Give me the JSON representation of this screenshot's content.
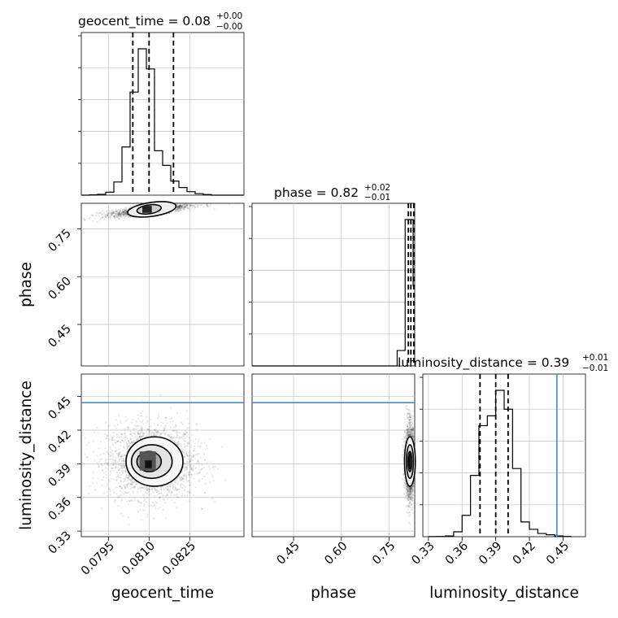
{
  "chart_data": {
    "type": "corner",
    "parameters": [
      "geocent_time",
      "phase",
      "luminosity_distance"
    ],
    "titles": [
      {
        "text": "geocent_time = 0.08",
        "sup": "+0.00",
        "sub": "−0.00"
      },
      {
        "text": "phase = 0.82",
        "sup": "+0.02",
        "sub": "−0.01"
      },
      {
        "text": "luminosity_distance = 0.39",
        "sup": "+0.01",
        "sub": "−0.01"
      }
    ],
    "axes": {
      "geocent_time": {
        "range": [
          0.0785,
          0.0845
        ],
        "ticks": [
          "0.0795",
          "0.0810",
          "0.0825"
        ]
      },
      "phase": {
        "range": [
          0.32,
          0.83
        ],
        "ticks": [
          "0.45",
          "0.60",
          "0.75"
        ]
      },
      "luminosity_distance": {
        "range": [
          0.325,
          0.47
        ],
        "ticks": [
          "0.33",
          "0.36",
          "0.39",
          "0.42",
          "0.45"
        ]
      }
    },
    "histograms": {
      "geocent_time": {
        "bin_edges": [
          0.0785,
          0.0788,
          0.0791,
          0.0794,
          0.0797,
          0.08,
          0.0803,
          0.0806,
          0.0809,
          0.0812,
          0.0815,
          0.0818,
          0.0821,
          0.0824,
          0.0827,
          0.083,
          0.0833,
          0.0836,
          0.0839,
          0.0842,
          0.0845
        ],
        "counts": [
          0,
          1,
          3,
          10,
          45,
          165,
          353,
          501,
          432,
          152,
          102,
          48,
          26,
          12,
          5,
          2,
          0,
          0,
          0,
          0
        ],
        "quantiles": [
          0.0804,
          0.081,
          0.0819
        ]
      },
      "phase": {
        "bin_edges": [
          0.3,
          0.325,
          0.35,
          0.375,
          0.4,
          0.425,
          0.45,
          0.475,
          0.5,
          0.525,
          0.55,
          0.575,
          0.6,
          0.625,
          0.65,
          0.675,
          0.7,
          0.725,
          0.75,
          0.775,
          0.8,
          0.825,
          0.85
        ],
        "counts": [
          0,
          0,
          0,
          0,
          0,
          0,
          0,
          0,
          0,
          0,
          0,
          0,
          0,
          0,
          0,
          0,
          0,
          0,
          0,
          0.1,
          0.95,
          0.52
        ],
        "quantiles": [
          0.81,
          0.818,
          0.827
        ]
      },
      "luminosity_distance": {
        "bin_edges": [
          0.33,
          0.3375,
          0.345,
          0.3525,
          0.36,
          0.3675,
          0.375,
          0.3825,
          0.39,
          0.3975,
          0.405,
          0.4125,
          0.42,
          0.4275,
          0.435,
          0.4425,
          0.45,
          0.4575
        ],
        "counts": [
          0.3,
          1,
          3,
          20,
          87,
          250,
          453,
          493,
          597,
          520,
          278,
          60,
          30,
          13,
          8,
          3,
          1
        ],
        "quantiles": [
          0.376,
          0.39,
          0.401
        ],
        "truth": 0.4445
      }
    },
    "truth": {
      "luminosity_distance": 0.4445
    },
    "truth_color": "#4f86c6",
    "line_color": "#000000",
    "grid": true
  }
}
